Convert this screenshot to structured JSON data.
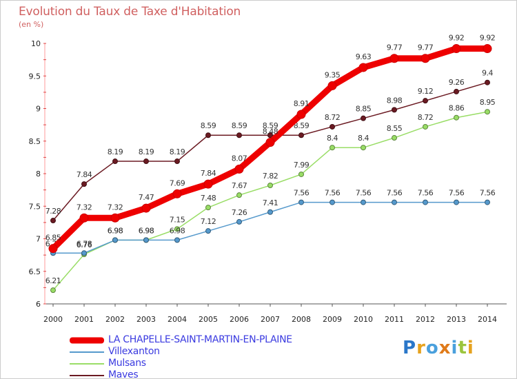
{
  "chart_data": {
    "type": "line",
    "title": "Evolution du Taux de Taxe d'Habitation",
    "ylabel": "(en %)",
    "x": [
      "2000",
      "2001",
      "2002",
      "2003",
      "2004",
      "2005",
      "2006",
      "2007",
      "2008",
      "2009",
      "2010",
      "2011",
      "2012",
      "2013",
      "2014"
    ],
    "ylim": [
      6,
      10
    ],
    "yticks": [
      "6",
      "6.5",
      "7",
      "7.5",
      "8",
      "8.5",
      "9",
      "9.5",
      "10"
    ],
    "grid": false,
    "legend_position": "bottom-left",
    "series": [
      {
        "name": "Maves",
        "color": "#6b1a22",
        "values": [
          7.28,
          7.84,
          8.19,
          8.19,
          8.19,
          8.59,
          8.59,
          8.59,
          8.59,
          8.72,
          8.85,
          8.98,
          9.12,
          9.26,
          9.4
        ]
      },
      {
        "name": "Mulsans",
        "color": "#99dd66",
        "values": [
          6.21,
          6.76,
          6.98,
          6.98,
          7.15,
          7.48,
          7.67,
          7.82,
          7.99,
          8.4,
          8.4,
          8.55,
          8.72,
          8.86,
          8.95
        ]
      },
      {
        "name": "Villexanton",
        "color": "#5599cc",
        "values": [
          6.78,
          6.78,
          6.98,
          6.98,
          6.98,
          7.12,
          7.26,
          7.41,
          7.56,
          7.56,
          7.56,
          7.56,
          7.56,
          7.56,
          7.56
        ]
      },
      {
        "name": "LA CHAPELLE-SAINT-MARTIN-EN-PLAINE",
        "color": "#ee0000",
        "values": [
          6.85,
          7.32,
          7.32,
          7.47,
          7.69,
          7.84,
          8.07,
          8.48,
          8.91,
          9.35,
          9.63,
          9.77,
          9.77,
          9.92,
          9.92
        ]
      }
    ]
  },
  "legend": [
    {
      "name": "LA CHAPELLE-SAINT-MARTIN-EN-PLAINE",
      "color": "#ee0000"
    },
    {
      "name": "Villexanton",
      "color": "#5599cc"
    },
    {
      "name": "Mulsans",
      "color": "#99dd66"
    },
    {
      "name": "Maves",
      "color": "#6b1a22"
    }
  ],
  "logo": {
    "text": "Proxiti",
    "colors": [
      "#2a77c9",
      "#e6a21e",
      "#4aa0dd",
      "#e07b1a",
      "#4aa0dd",
      "#9bc53d",
      "#e6a21e"
    ]
  }
}
